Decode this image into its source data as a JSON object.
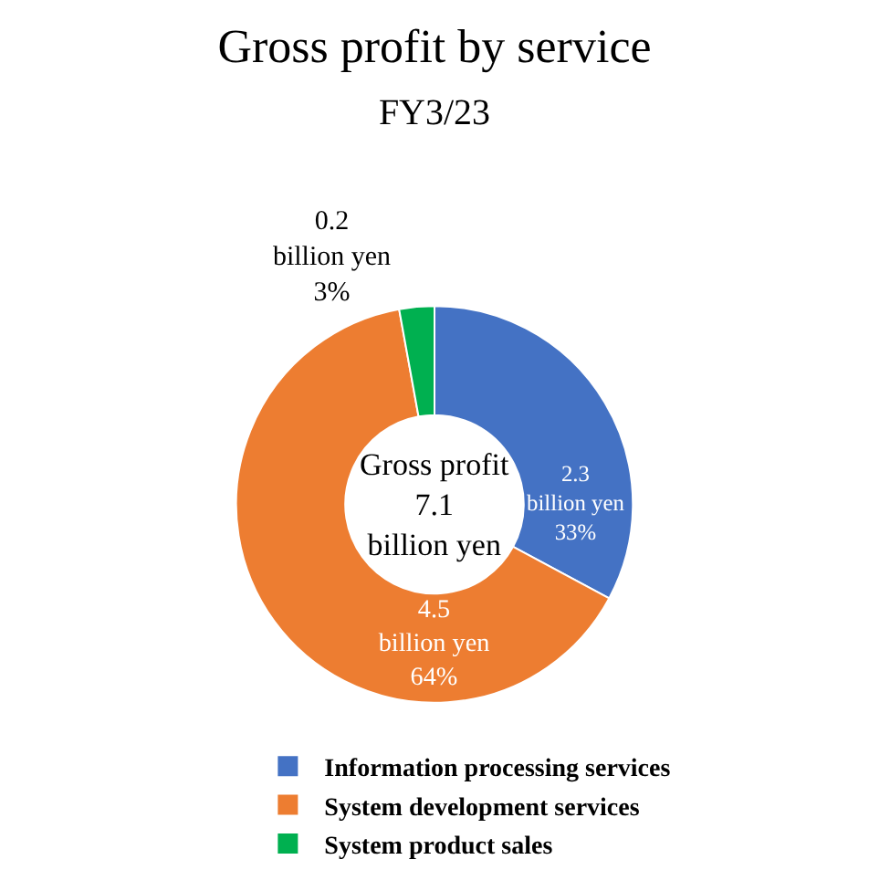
{
  "chart_data": {
    "type": "donut",
    "title": "Gross profit by service",
    "subtitle": "FY3/23",
    "categories": [
      "Information processing services",
      "System development services",
      "System product sales"
    ],
    "values": [
      2.3,
      4.5,
      0.2
    ],
    "colors": [
      "#4472c4",
      "#ed7d31",
      "#00b050"
    ],
    "value_labels": [
      "2.3\nbillion yen\n33%",
      "4.5\nbillion yen\n64%",
      "0.2\nbillion yen\n3%"
    ],
    "annotations": [
      "Gross profit\n7.1\nbillion yen"
    ],
    "legend": "bottom"
  }
}
